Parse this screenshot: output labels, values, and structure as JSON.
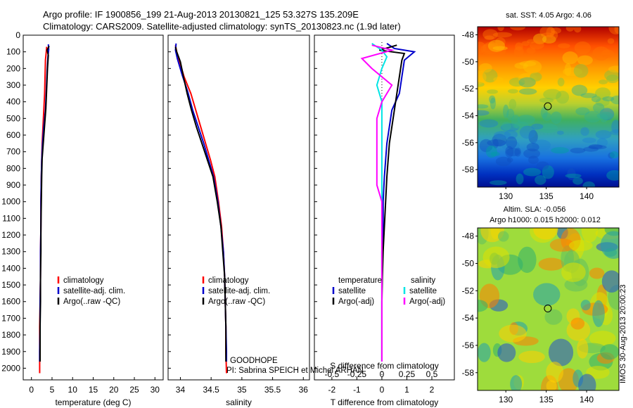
{
  "header": {
    "line1": "Argo profile: IF 1900856_199 21-Aug-2013 20130821_125 53.327S 135.209E",
    "line2": "Climatology: CARS2009. Satellite-adjusted climatology: synTS_20130823.nc (1.9d later)"
  },
  "colors": {
    "climatology": "#ff0000",
    "satellite": "#0000cc",
    "argo": "#000000",
    "sat_salinity": "#00e5e5",
    "argo_salinity_diff": "#ff00ff"
  },
  "depth_ticks": [
    0,
    100,
    200,
    300,
    400,
    500,
    600,
    700,
    800,
    900,
    1000,
    1100,
    1200,
    1300,
    1400,
    1500,
    1600,
    1700,
    1800,
    1900,
    2000
  ],
  "chart_data": [
    {
      "type": "line",
      "panel": "temperature",
      "xlabel": "temperature (deg C)",
      "xticks": [
        0,
        5,
        10,
        15,
        20,
        25,
        30
      ],
      "xlim": [
        -2,
        32
      ],
      "ylim": [
        2070,
        0
      ],
      "legend": [
        "climatology",
        "satellite-adj. clim.",
        "Argo(..raw -QC)"
      ],
      "series": [
        {
          "name": "climatology",
          "color": "#ff0000",
          "x": [
            3.7,
            3.6,
            3.4,
            3.3,
            3.2,
            3.0,
            2.8,
            2.6,
            2.5,
            2.4,
            2.3,
            2.3,
            2.2,
            2.2,
            2.1,
            2.0,
            2.0,
            2.0
          ],
          "y": [
            70,
            100,
            150,
            250,
            350,
            450,
            550,
            650,
            750,
            850,
            1000,
            1150,
            1300,
            1450,
            1600,
            1750,
            1900,
            2030
          ]
        },
        {
          "name": "satellite-adj. clim.",
          "color": "#0000cc",
          "x": [
            4.1,
            4.2,
            4.0,
            3.8,
            3.6,
            3.4,
            3.0,
            2.7,
            2.5,
            2.4,
            2.3,
            2.3,
            2.2,
            2.2,
            2.1,
            2.1,
            2.0,
            2.0
          ],
          "y": [
            55,
            85,
            130,
            220,
            340,
            450,
            550,
            650,
            750,
            850,
            1000,
            1150,
            1300,
            1450,
            1600,
            1750,
            1900,
            1960
          ]
        },
        {
          "name": "Argo(..raw -QC)",
          "color": "#000000",
          "x": [
            4.3,
            3.8,
            4.1,
            3.9,
            3.7,
            3.5,
            3.2,
            2.9,
            2.6,
            2.5,
            2.4,
            2.3,
            2.3,
            2.2,
            2.2,
            2.1,
            2.1,
            2.1
          ],
          "y": [
            65,
            90,
            120,
            200,
            320,
            440,
            540,
            640,
            740,
            840,
            1000,
            1150,
            1300,
            1450,
            1600,
            1750,
            1900,
            1960
          ]
        }
      ]
    },
    {
      "type": "line",
      "panel": "salinity",
      "xlabel": "salinity",
      "xticks": [
        "34",
        "34.5",
        "35",
        "35.5",
        "36"
      ],
      "xtick_values": [
        34,
        34.5,
        35,
        35.5,
        36
      ],
      "xlim": [
        33.8,
        36.1
      ],
      "ylim": [
        2070,
        0
      ],
      "legend": [
        "climatology",
        "satellite-adj. clim.",
        "Argo(..raw -QC)"
      ],
      "annotations": [
        "GOODHOPE",
        "PI: Sabrina SPEICH et Michel ARHAN"
      ],
      "series": [
        {
          "name": "climatology",
          "color": "#ff0000",
          "x": [
            33.92,
            33.94,
            33.98,
            34.06,
            34.17,
            34.25,
            34.33,
            34.41,
            34.49,
            34.56,
            34.62,
            34.67,
            34.7,
            34.72,
            34.73,
            34.74,
            34.74,
            34.75
          ],
          "y": [
            60,
            100,
            150,
            250,
            350,
            450,
            550,
            650,
            750,
            850,
            1000,
            1150,
            1300,
            1450,
            1600,
            1750,
            1900,
            2030
          ]
        },
        {
          "name": "satellite-adj. clim.",
          "color": "#0000cc",
          "x": [
            33.93,
            33.92,
            33.95,
            34.03,
            34.12,
            34.2,
            34.29,
            34.38,
            34.46,
            34.54,
            34.61,
            34.66,
            34.7,
            34.72,
            34.73,
            34.74,
            34.75,
            34.75
          ],
          "y": [
            50,
            90,
            140,
            240,
            340,
            450,
            550,
            650,
            750,
            850,
            1000,
            1150,
            1300,
            1450,
            1600,
            1750,
            1900,
            1960
          ]
        },
        {
          "name": "Argo(..raw -QC)",
          "color": "#000000",
          "x": [
            33.92,
            33.94,
            34.0,
            34.05,
            34.11,
            34.18,
            34.26,
            34.35,
            34.44,
            34.53,
            34.6,
            34.66,
            34.69,
            34.72,
            34.73,
            34.74,
            34.74,
            34.74
          ],
          "y": [
            70,
            100,
            160,
            250,
            350,
            450,
            550,
            650,
            750,
            850,
            1000,
            1150,
            1300,
            1450,
            1600,
            1750,
            1900,
            1960
          ]
        }
      ]
    },
    {
      "type": "line",
      "panel": "difference",
      "xlabel": "T difference from climatology",
      "top_axis_label": "S difference from climatology",
      "xticks": [
        "-2",
        "-1",
        "0",
        "1",
        "2"
      ],
      "xtick_values": [
        -2,
        -1,
        0,
        1,
        2
      ],
      "top_xticks": [
        "-0.5",
        "-0.25",
        "0",
        "0.25",
        "0.5"
      ],
      "top_xtick_values": [
        -0.5,
        -0.25,
        0,
        0.25,
        0.5
      ],
      "xlim": [
        -2.7,
        2.9
      ],
      "ylim": [
        2070,
        0
      ],
      "legend_temperature": {
        "title": "temperature",
        "items": [
          "satellite",
          "Argo(-adj)"
        ]
      },
      "legend_salinity": {
        "title": "salinity",
        "items": [
          "satellite",
          "Argo(-adj)"
        ]
      },
      "series": [
        {
          "name": "satellite",
          "group": "temperature",
          "color": "#0000cc",
          "x": [
            0.2,
            0.5,
            1.3,
            0.9,
            0.8,
            0.7,
            0.4,
            0.3,
            0.2,
            0.15,
            0.1,
            0.05,
            0.05,
            0.0,
            0.0,
            0.0,
            0.0,
            0.0
          ],
          "y": [
            50,
            80,
            100,
            150,
            250,
            350,
            450,
            550,
            650,
            750,
            850,
            1000,
            1150,
            1300,
            1450,
            1600,
            1750,
            1960
          ]
        },
        {
          "name": "Argo(-adj)",
          "group": "temperature",
          "color": "#000000",
          "x": [
            0.6,
            -0.1,
            0.9,
            0.8,
            0.7,
            0.6,
            0.5,
            0.4,
            0.3,
            0.25,
            0.2,
            0.15,
            0.1,
            0.05,
            0.02,
            0.0,
            0.0,
            0.0
          ],
          "y": [
            60,
            90,
            110,
            150,
            250,
            350,
            450,
            550,
            650,
            750,
            850,
            1000,
            1150,
            1300,
            1450,
            1600,
            1750,
            1960
          ]
        },
        {
          "name": "satellite",
          "group": "salinity",
          "color": "#00e5e5",
          "x": [
            -0.1,
            0.0,
            0.05,
            0.0,
            -0.05,
            0.0,
            0.0,
            0.0,
            0.0,
            0.0,
            0.0,
            0.0,
            0.0,
            0.0,
            0.0,
            0.0,
            0.0,
            0.0
          ],
          "y": [
            50,
            90,
            130,
            200,
            300,
            400,
            500,
            600,
            700,
            800,
            900,
            1000,
            1150,
            1300,
            1450,
            1600,
            1750,
            1960
          ]
        },
        {
          "name": "Argo(-adj)",
          "group": "salinity",
          "color": "#ff00ff",
          "x": [
            -0.1,
            0.1,
            -0.2,
            -0.1,
            0.1,
            0.0,
            -0.05,
            -0.05,
            -0.05,
            -0.05,
            -0.05,
            0.0,
            0.0,
            0.0,
            0.0,
            0.0,
            0.0,
            0.0
          ],
          "y": [
            60,
            90,
            140,
            200,
            300,
            400,
            500,
            600,
            700,
            800,
            900,
            1000,
            1150,
            1300,
            1450,
            1600,
            1750,
            1960
          ]
        }
      ]
    }
  ],
  "maps": {
    "sst": {
      "title": "sat. SST: 4.05  Argo: 4.06",
      "yticks": [
        "-48",
        "-50",
        "-52",
        "-54",
        "-56",
        "-58"
      ],
      "ytick_values": [
        -48,
        -50,
        -52,
        -54,
        -56,
        -58
      ],
      "xticks": [
        "130",
        "135",
        "140"
      ],
      "xtick_values": [
        130,
        135,
        140
      ],
      "lon_range": [
        126.5,
        144
      ],
      "lat_range": [
        -59.3,
        -47.4
      ],
      "marker": {
        "lon": 135.2,
        "lat": -53.3
      }
    },
    "sla": {
      "title1": "Altim. SLA: -0.056",
      "title2": "Argo h1000: 0.015 h2000: 0.012",
      "yticks": [
        "-48",
        "-50",
        "-52",
        "-54",
        "-56",
        "-58"
      ],
      "ytick_values": [
        -48,
        -50,
        -52,
        -54,
        -56,
        -58
      ],
      "xticks": [
        "130",
        "135",
        "140"
      ],
      "xtick_values": [
        130,
        135,
        140
      ],
      "lon_range": [
        126.5,
        144
      ],
      "lat_range": [
        -59.3,
        -47.4
      ],
      "marker": {
        "lon": 135.2,
        "lat": -53.3
      }
    }
  },
  "footer": {
    "stamp": "IMOS 30-Aug-2013 20:00:23"
  }
}
